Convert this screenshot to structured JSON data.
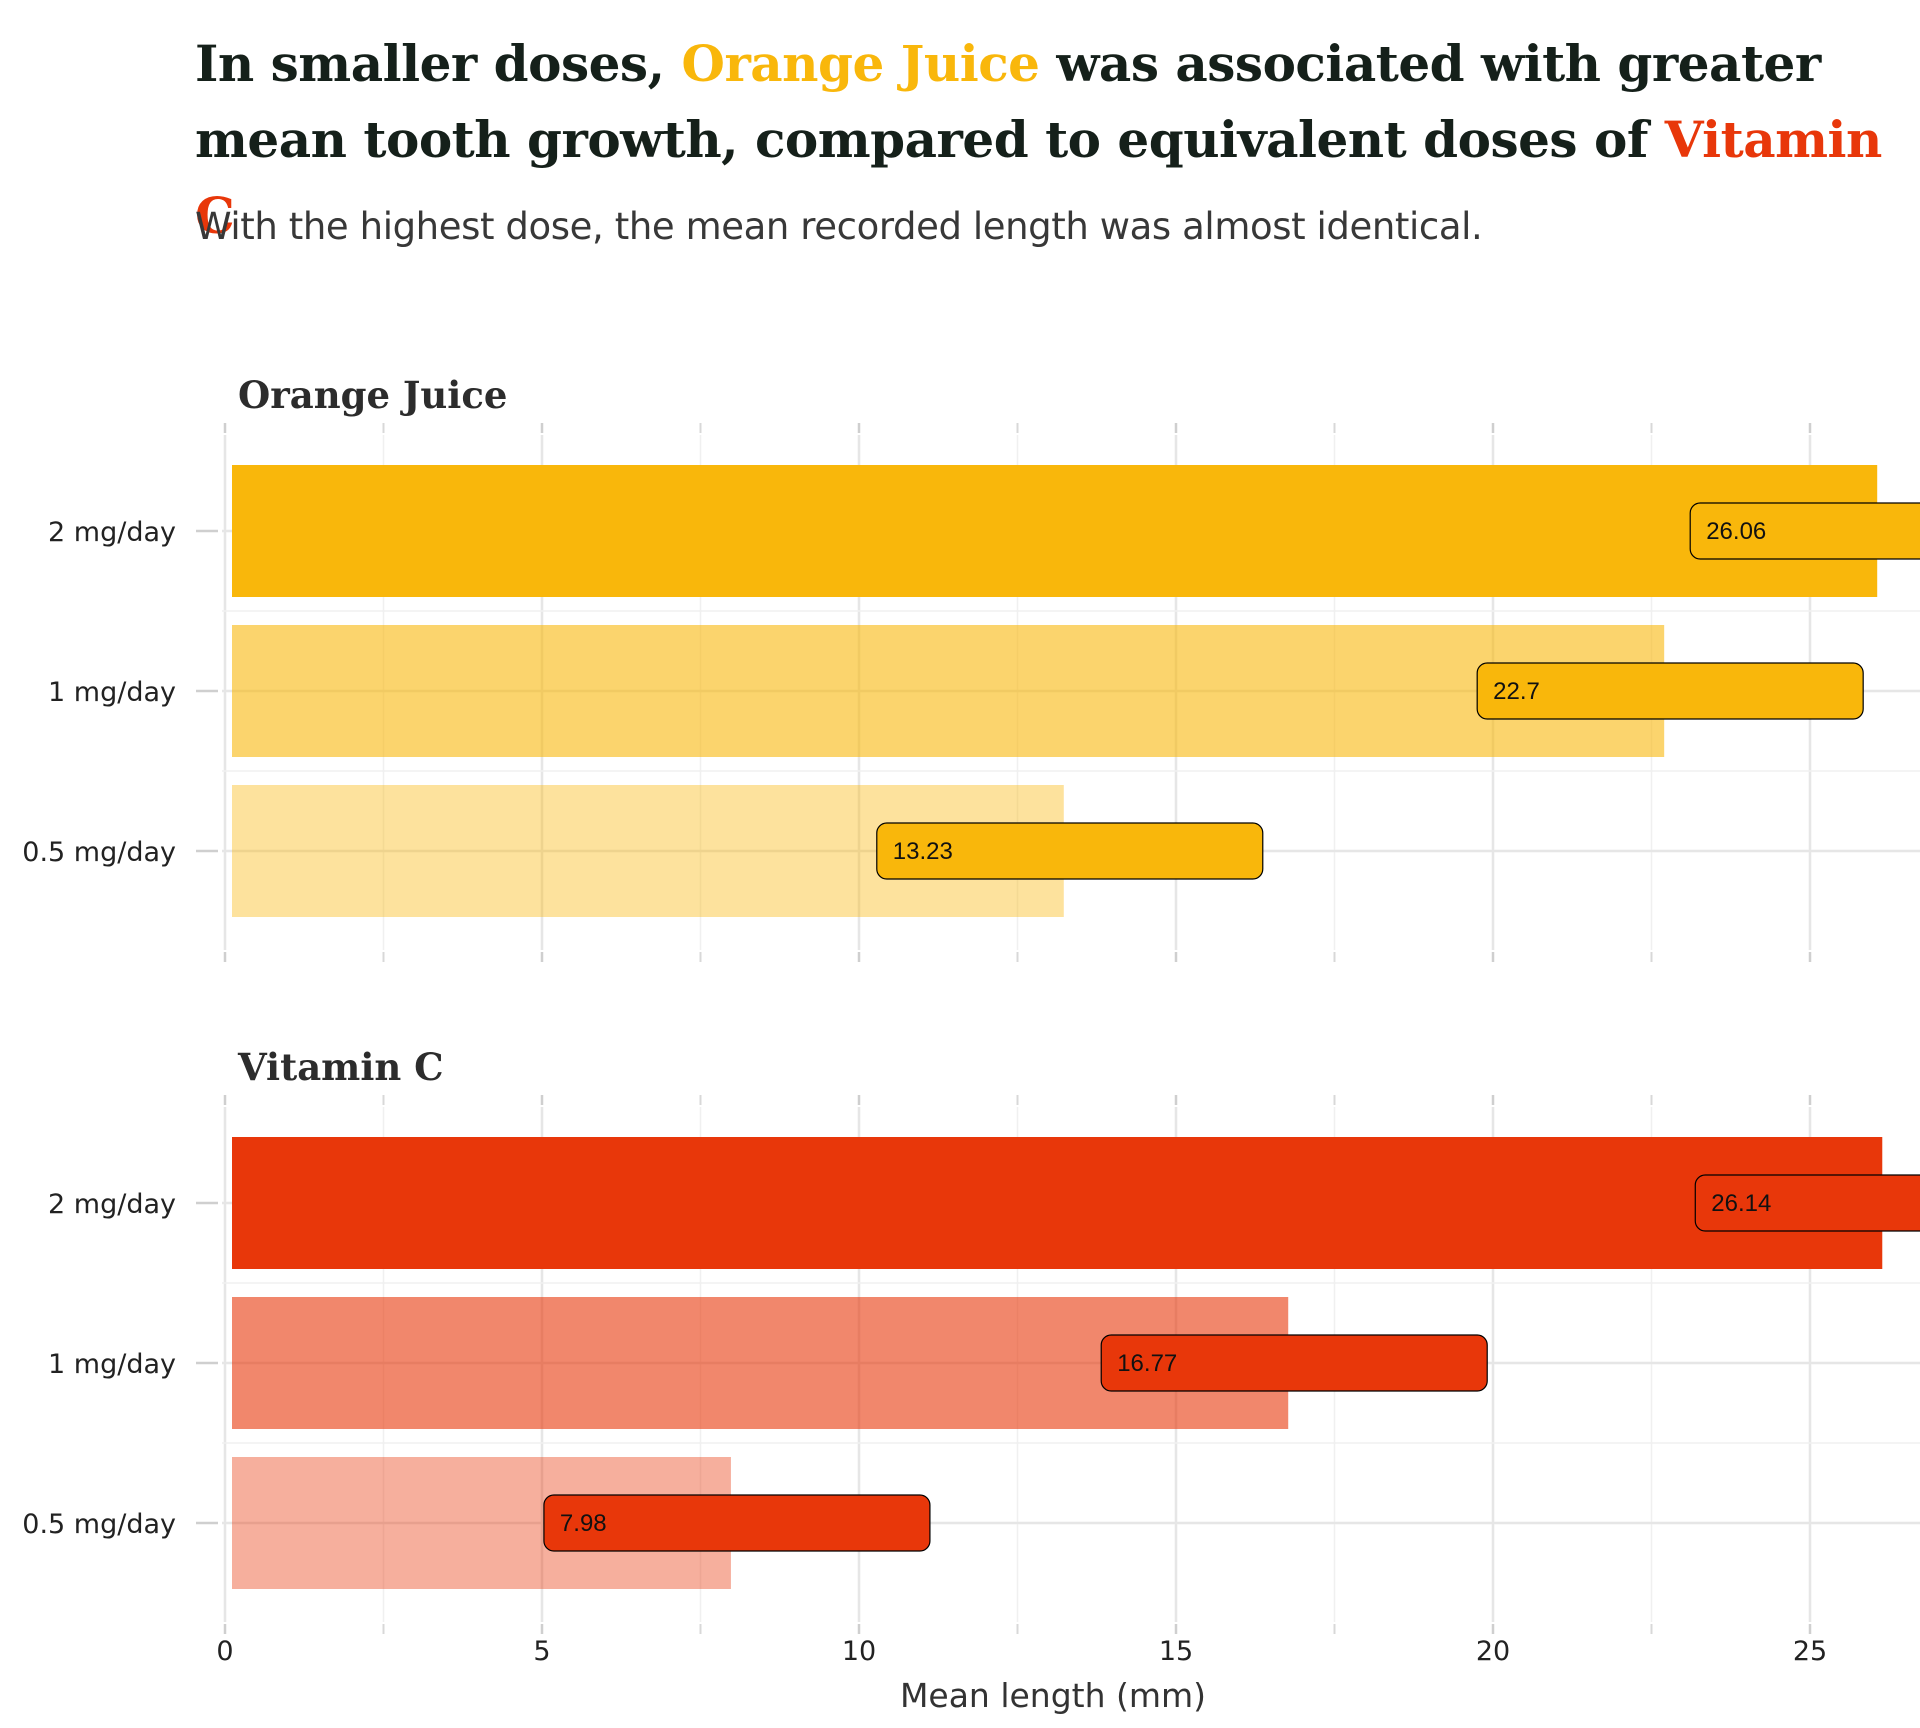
{
  "title": {
    "part1": "In smaller doses, ",
    "highlight1": "Orange Juice",
    "part2": " was associated with greater mean tooth growth, compared to equivalent doses of ",
    "highlight2": "Vitamin C"
  },
  "subtitle": "With the highest dose, the mean recorded length was almost identical.",
  "colors": {
    "orange_juice": "#f9b70b",
    "vitamin_c": "#e8370a",
    "title_text": "#15201a",
    "grid": "#e6e6e6"
  },
  "chart_data": {
    "type": "bar",
    "orientation": "horizontal",
    "xlabel": "Mean length (mm)",
    "xlim": [
      0,
      26.5
    ],
    "xticks": [
      0,
      5,
      10,
      15,
      20,
      25
    ],
    "grid": true,
    "facets": [
      {
        "name": "Orange Juice",
        "color": "#f9b70b",
        "categories": [
          "2 mg/day",
          "1 mg/day",
          "0.5 mg/day"
        ],
        "values": [
          26.06,
          22.7,
          13.23
        ],
        "opacity": [
          1.0,
          0.6,
          0.4
        ],
        "labels": [
          "26.06",
          "22.7",
          "13.23"
        ]
      },
      {
        "name": "Vitamin C",
        "color": "#e8370a",
        "categories": [
          "2 mg/day",
          "1 mg/day",
          "0.5 mg/day"
        ],
        "values": [
          26.14,
          16.77,
          7.98
        ],
        "opacity": [
          1.0,
          0.6,
          0.4
        ],
        "labels": [
          "26.14",
          "16.77",
          "7.98"
        ]
      }
    ]
  }
}
